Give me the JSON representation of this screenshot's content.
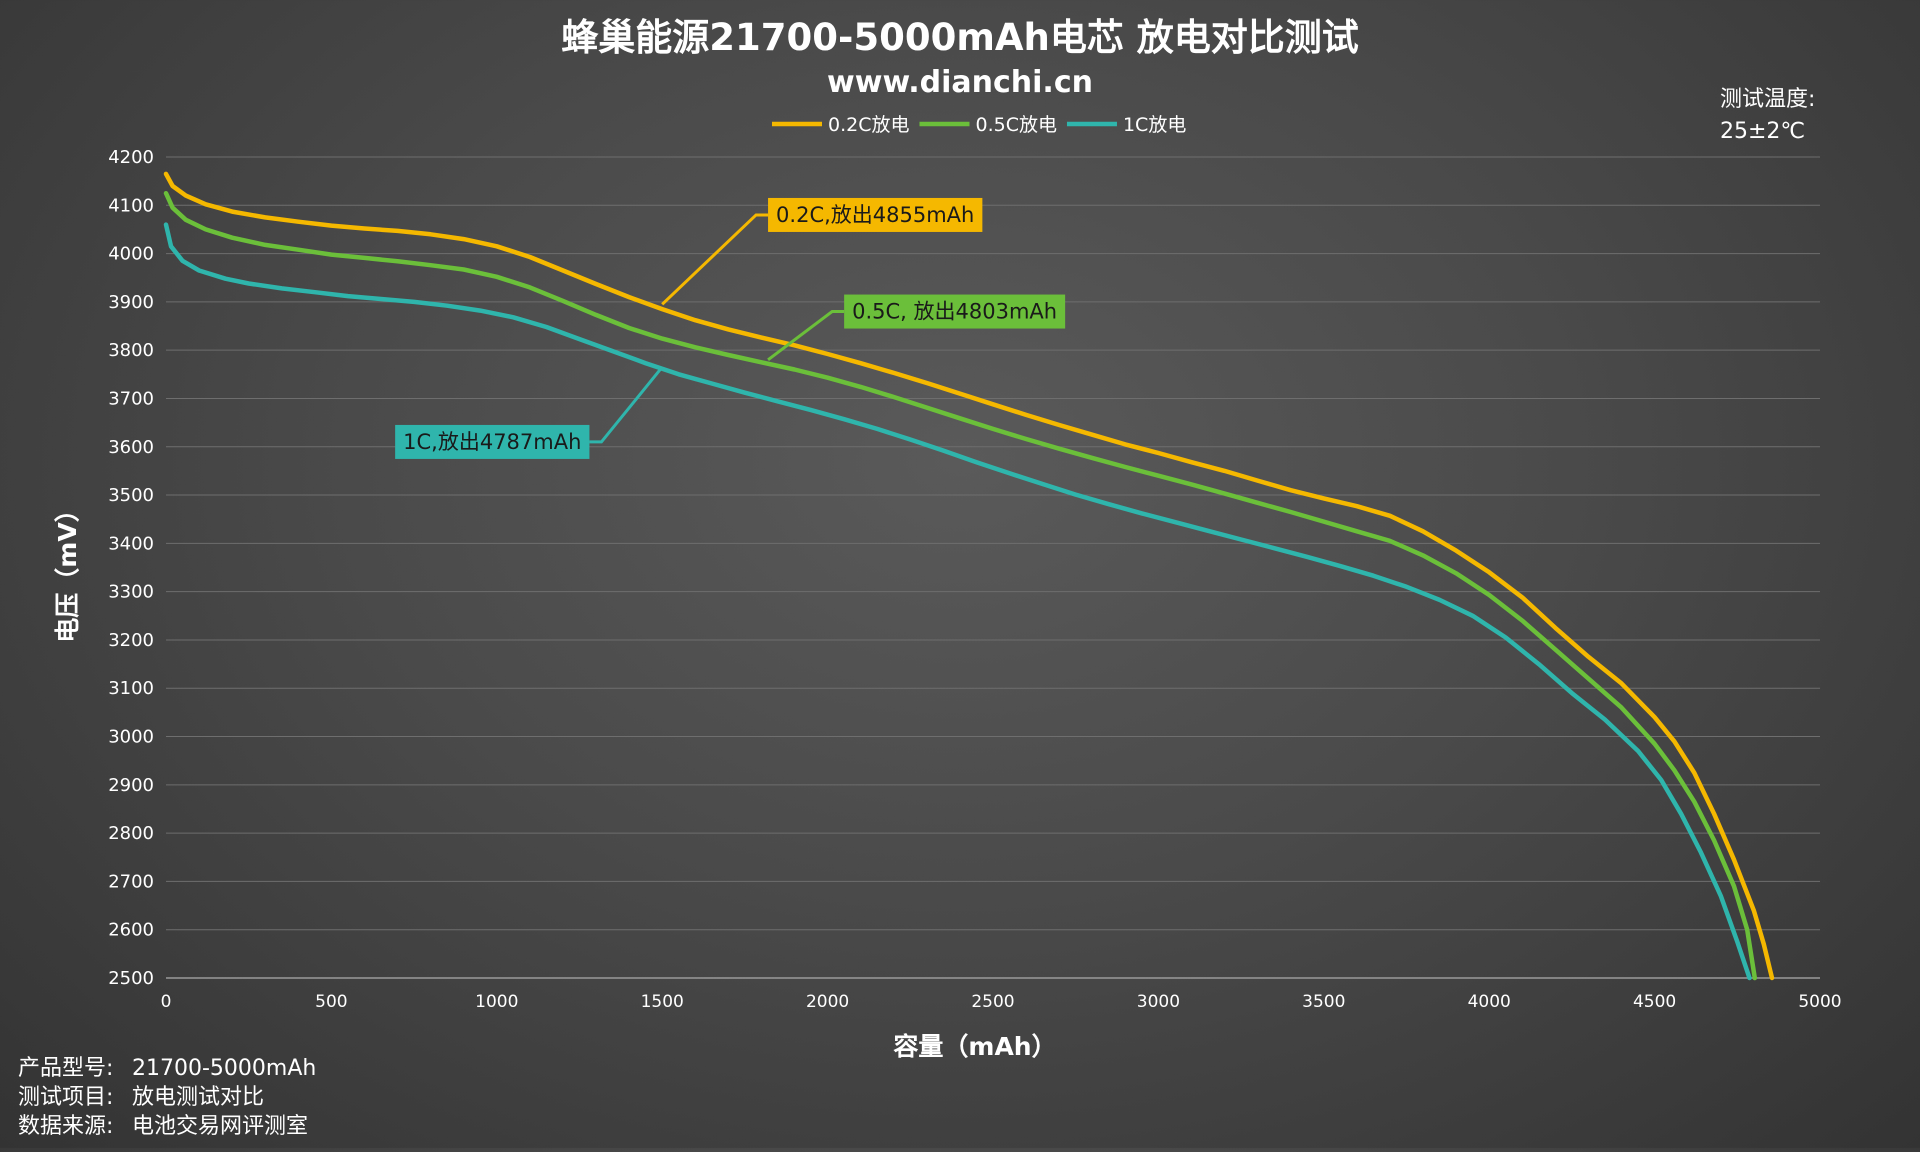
{
  "chart_data": {
    "type": "line",
    "title": "蜂巢能源21700-5000mAh电芯 放电对比测试",
    "subtitle": "www.dianchi.cn",
    "xlabel": "容量（mAh）",
    "ylabel": "电压（mV）",
    "xlim": [
      0,
      5000
    ],
    "ylim": [
      2500,
      4200
    ],
    "x_ticks": [
      0,
      500,
      1000,
      1500,
      2000,
      2500,
      3000,
      3500,
      4000,
      4500,
      5000
    ],
    "y_ticks": [
      2500,
      2600,
      2700,
      2800,
      2900,
      3000,
      3100,
      3200,
      3300,
      3400,
      3500,
      3600,
      3700,
      3800,
      3900,
      4000,
      4100,
      4200
    ],
    "grid": "horizontal",
    "legend_position": "top-center",
    "series": [
      {
        "name": "0.2C放电",
        "color": "#f5b800",
        "points": [
          [
            0,
            4165
          ],
          [
            20,
            4140
          ],
          [
            60,
            4120
          ],
          [
            120,
            4102
          ],
          [
            200,
            4087
          ],
          [
            300,
            4075
          ],
          [
            400,
            4066
          ],
          [
            500,
            4058
          ],
          [
            600,
            4052
          ],
          [
            700,
            4047
          ],
          [
            800,
            4040
          ],
          [
            900,
            4030
          ],
          [
            1000,
            4015
          ],
          [
            1100,
            3993
          ],
          [
            1200,
            3965
          ],
          [
            1300,
            3937
          ],
          [
            1400,
            3910
          ],
          [
            1500,
            3885
          ],
          [
            1600,
            3862
          ],
          [
            1700,
            3843
          ],
          [
            1800,
            3826
          ],
          [
            1900,
            3810
          ],
          [
            2000,
            3792
          ],
          [
            2100,
            3773
          ],
          [
            2200,
            3753
          ],
          [
            2300,
            3732
          ],
          [
            2400,
            3710
          ],
          [
            2500,
            3688
          ],
          [
            2600,
            3666
          ],
          [
            2700,
            3645
          ],
          [
            2800,
            3625
          ],
          [
            2900,
            3605
          ],
          [
            3000,
            3587
          ],
          [
            3100,
            3568
          ],
          [
            3200,
            3550
          ],
          [
            3300,
            3530
          ],
          [
            3400,
            3510
          ],
          [
            3500,
            3493
          ],
          [
            3600,
            3477
          ],
          [
            3700,
            3457
          ],
          [
            3800,
            3425
          ],
          [
            3900,
            3385
          ],
          [
            4000,
            3340
          ],
          [
            4100,
            3288
          ],
          [
            4200,
            3225
          ],
          [
            4300,
            3165
          ],
          [
            4400,
            3110
          ],
          [
            4500,
            3040
          ],
          [
            4560,
            2990
          ],
          [
            4620,
            2925
          ],
          [
            4680,
            2840
          ],
          [
            4740,
            2745
          ],
          [
            4800,
            2640
          ],
          [
            4830,
            2570
          ],
          [
            4855,
            2500
          ]
        ]
      },
      {
        "name": "0.5C放电",
        "color": "#6bbf3a",
        "points": [
          [
            0,
            4125
          ],
          [
            20,
            4095
          ],
          [
            60,
            4070
          ],
          [
            120,
            4050
          ],
          [
            200,
            4033
          ],
          [
            300,
            4018
          ],
          [
            400,
            4008
          ],
          [
            500,
            3998
          ],
          [
            600,
            3991
          ],
          [
            700,
            3984
          ],
          [
            800,
            3976
          ],
          [
            900,
            3967
          ],
          [
            1000,
            3952
          ],
          [
            1100,
            3930
          ],
          [
            1200,
            3902
          ],
          [
            1300,
            3873
          ],
          [
            1400,
            3846
          ],
          [
            1500,
            3824
          ],
          [
            1600,
            3806
          ],
          [
            1700,
            3790
          ],
          [
            1800,
            3775
          ],
          [
            1900,
            3760
          ],
          [
            2000,
            3743
          ],
          [
            2100,
            3724
          ],
          [
            2200,
            3703
          ],
          [
            2300,
            3681
          ],
          [
            2400,
            3659
          ],
          [
            2500,
            3637
          ],
          [
            2600,
            3616
          ],
          [
            2700,
            3596
          ],
          [
            2800,
            3577
          ],
          [
            2900,
            3558
          ],
          [
            3000,
            3540
          ],
          [
            3100,
            3522
          ],
          [
            3200,
            3503
          ],
          [
            3300,
            3484
          ],
          [
            3400,
            3465
          ],
          [
            3500,
            3445
          ],
          [
            3600,
            3425
          ],
          [
            3700,
            3405
          ],
          [
            3800,
            3375
          ],
          [
            3900,
            3338
          ],
          [
            4000,
            3293
          ],
          [
            4100,
            3240
          ],
          [
            4200,
            3180
          ],
          [
            4300,
            3120
          ],
          [
            4400,
            3060
          ],
          [
            4500,
            2985
          ],
          [
            4560,
            2930
          ],
          [
            4620,
            2865
          ],
          [
            4680,
            2785
          ],
          [
            4740,
            2690
          ],
          [
            4780,
            2600
          ],
          [
            4803,
            2500
          ]
        ]
      },
      {
        "name": "1C放电",
        "color": "#2fb5ac",
        "points": [
          [
            0,
            4060
          ],
          [
            15,
            4015
          ],
          [
            50,
            3985
          ],
          [
            100,
            3965
          ],
          [
            180,
            3948
          ],
          [
            250,
            3938
          ],
          [
            350,
            3928
          ],
          [
            450,
            3920
          ],
          [
            550,
            3912
          ],
          [
            650,
            3906
          ],
          [
            750,
            3900
          ],
          [
            850,
            3892
          ],
          [
            950,
            3882
          ],
          [
            1050,
            3868
          ],
          [
            1150,
            3848
          ],
          [
            1250,
            3823
          ],
          [
            1350,
            3798
          ],
          [
            1450,
            3773
          ],
          [
            1550,
            3750
          ],
          [
            1650,
            3731
          ],
          [
            1750,
            3712
          ],
          [
            1850,
            3694
          ],
          [
            1950,
            3676
          ],
          [
            2050,
            3657
          ],
          [
            2150,
            3637
          ],
          [
            2250,
            3615
          ],
          [
            2350,
            3592
          ],
          [
            2450,
            3568
          ],
          [
            2550,
            3545
          ],
          [
            2650,
            3523
          ],
          [
            2750,
            3501
          ],
          [
            2850,
            3481
          ],
          [
            2950,
            3462
          ],
          [
            3050,
            3444
          ],
          [
            3150,
            3426
          ],
          [
            3250,
            3408
          ],
          [
            3350,
            3390
          ],
          [
            3450,
            3372
          ],
          [
            3550,
            3353
          ],
          [
            3650,
            3333
          ],
          [
            3750,
            3310
          ],
          [
            3850,
            3283
          ],
          [
            3950,
            3250
          ],
          [
            4050,
            3205
          ],
          [
            4150,
            3150
          ],
          [
            4250,
            3090
          ],
          [
            4350,
            3035
          ],
          [
            4450,
            2970
          ],
          [
            4520,
            2910
          ],
          [
            4580,
            2840
          ],
          [
            4640,
            2760
          ],
          [
            4700,
            2670
          ],
          [
            4750,
            2575
          ],
          [
            4787,
            2500
          ]
        ]
      }
    ],
    "annotations": [
      {
        "text": "0.2C,放出4855mAh",
        "color": "#f5b800",
        "text_color": "#1a1a1a",
        "anchor": [
          1500,
          3895
        ],
        "label_at": [
          1820,
          4080
        ]
      },
      {
        "text": "0.5C, 放出4803mAh",
        "color": "#6bbf3a",
        "text_color": "#1a1a1a",
        "anchor": [
          1820,
          3780
        ],
        "label_at": [
          2050,
          3880
        ]
      },
      {
        "text": "1C,放出4787mAh",
        "color": "#2fb5ac",
        "text_color": "#1a1a1a",
        "anchor": [
          1500,
          3765
        ],
        "label_at": [
          1280,
          3610
        ]
      }
    ]
  },
  "test_condition": {
    "label": "测试温度:",
    "value": "25±2℃"
  },
  "footer": [
    {
      "label": "产品型号:",
      "value": "21700-5000mAh"
    },
    {
      "label": "测试项目:",
      "value": "放电测试对比"
    },
    {
      "label": "数据来源:",
      "value": "电池交易网评测室"
    }
  ]
}
